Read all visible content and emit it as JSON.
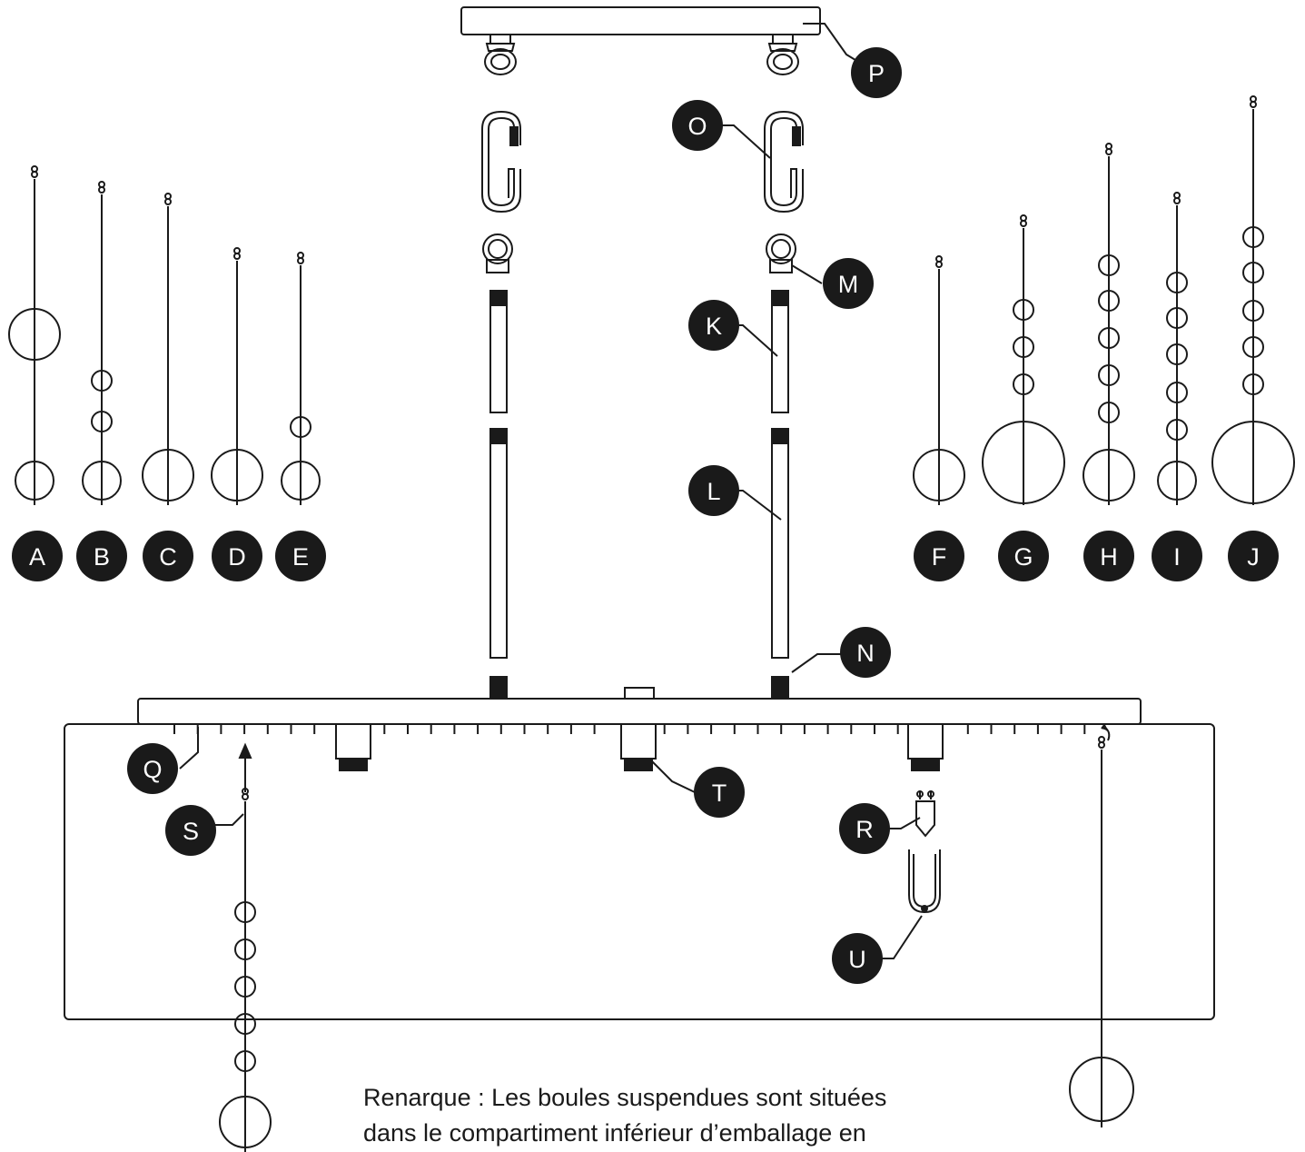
{
  "colors": {
    "line": "#1a1a1a",
    "badge_fill": "#1a1a1a",
    "badge_text": "#ffffff",
    "background": "#ffffff"
  },
  "badges": {
    "A": "A",
    "B": "B",
    "C": "C",
    "D": "D",
    "E": "E",
    "F": "F",
    "G": "G",
    "H": "H",
    "I": "I",
    "J": "J",
    "K": "K",
    "L": "L",
    "M": "M",
    "N": "N",
    "O": "O",
    "P": "P",
    "Q": "Q",
    "R": "R",
    "S": "S",
    "T": "T",
    "U": "U"
  },
  "note": {
    "line1": "Renarque : Les boules suspendues sont situées",
    "line2": "dans le compartiment inférieur d’emballage en"
  }
}
